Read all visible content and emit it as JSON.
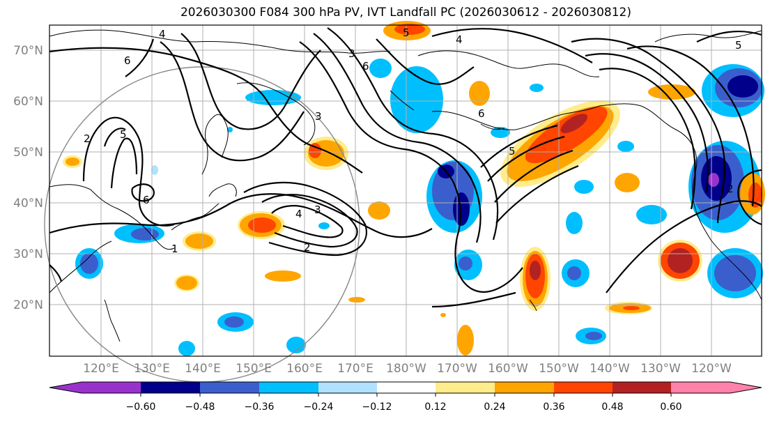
{
  "title": "2026030300 F084 300 hPa PV, IVT Landfall PC (2026030612 - 2026030812)",
  "map": {
    "lat_labels": [
      "70°N",
      "60°N",
      "50°N",
      "40°N",
      "30°N",
      "20°N"
    ],
    "lon_labels": [
      "120°E",
      "130°E",
      "140°E",
      "150°E",
      "160°E",
      "170°E",
      "180°W",
      "170°W",
      "160°W",
      "150°W",
      "140°W",
      "130°W",
      "120°W"
    ],
    "lat_values": [
      70,
      60,
      50,
      40,
      30,
      20
    ],
    "contour_labels": [
      "4",
      "6",
      "2",
      "5",
      "6",
      "3",
      "4",
      "3",
      "2",
      "1",
      "6",
      "5",
      "6",
      "5",
      "4",
      "5",
      "3",
      "2"
    ]
  },
  "colorbar": {
    "ticks": [
      "−0.60",
      "−0.48",
      "−0.36",
      "−0.24",
      "−0.12",
      "0.12",
      "0.24",
      "0.36",
      "0.48",
      "0.60"
    ],
    "colors": {
      "below_min": "#9932cc",
      "lt_-0.48": "#00008b",
      "lt_-0.36": "#3a5fcd",
      "lt_-0.24": "#00bfff",
      "lt_-0.12": "#b0e2ff",
      "neutral": "#ffffff",
      "gt_0.12": "#ffec8b",
      "gt_0.24": "#ffa500",
      "gt_0.36": "#ff4500",
      "gt_0.48": "#b22222",
      "above_max": "#ff82ab"
    }
  }
}
